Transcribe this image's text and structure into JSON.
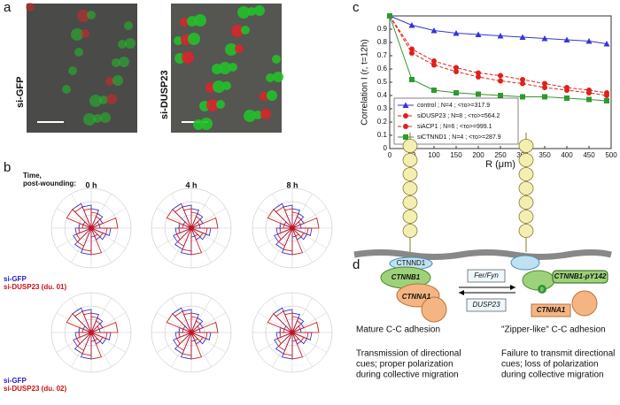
{
  "panel_labels": [
    "a",
    "b",
    "c",
    "d"
  ],
  "panel_a": {
    "images": [
      {
        "label": "si-GFP"
      },
      {
        "label": "si-DUSP23"
      }
    ]
  },
  "panel_b": {
    "time_label": [
      "Time,",
      "post-wounding:"
    ],
    "times": [
      "0 h",
      "4 h",
      "8 h"
    ],
    "rows": [
      {
        "control": "si-GFP",
        "treatment": "si-DUSP23 (du. 01)"
      },
      {
        "control": "si-GFP",
        "treatment": "si-DUSP23 (du. 02)"
      }
    ]
  },
  "chart_data": {
    "type": "line",
    "x_label": "R (μm)",
    "y_label": "Correlation I (r, t=12h)",
    "x": [
      0,
      50,
      100,
      150,
      200,
      250,
      300,
      350,
      400,
      450,
      490
    ],
    "xlim": [
      0,
      500
    ],
    "xticks": [
      0,
      50,
      100,
      150,
      200,
      250,
      300,
      350,
      400,
      450,
      500
    ],
    "ylim": [
      0,
      1
    ],
    "yticks": [
      0,
      0.1,
      0.2,
      0.3,
      0.4,
      0.5,
      0.6,
      0.7,
      0.8,
      0.9
    ],
    "legend": "lower left",
    "series": [
      {
        "name": "control ; N=4 ; <τo>=317.9",
        "color": "#3434d8",
        "marker": "triangle",
        "dashed": false,
        "values": [
          1,
          0.93,
          0.89,
          0.87,
          0.86,
          0.85,
          0.84,
          0.83,
          0.82,
          0.81,
          0.79
        ]
      },
      {
        "name": "siDUSP23 ; N=8 ; <τo>=564.2",
        "color": "#e0201b",
        "marker": "circle",
        "dashed": true,
        "values": [
          1,
          0.75,
          0.66,
          0.61,
          0.57,
          0.55,
          0.52,
          0.49,
          0.46,
          0.44,
          0.42
        ]
      },
      {
        "name": "siACP1 ; N=6 ; <τo>=999.1",
        "color": "#e0201b",
        "marker": "circle",
        "dashed": true,
        "values": [
          1,
          0.72,
          0.63,
          0.58,
          0.54,
          0.51,
          0.49,
          0.46,
          0.44,
          0.42,
          0.4
        ]
      },
      {
        "name": "siCTNND1 ; N=4 ; <τo>=287.9",
        "color": "#2e9a2e",
        "marker": "square",
        "dashed": false,
        "values": [
          1,
          0.52,
          0.44,
          0.42,
          0.41,
          0.4,
          0.39,
          0.39,
          0.38,
          0.37,
          0.36
        ]
      }
    ]
  },
  "panel_d": {
    "ctnnd1": "CTNND1",
    "ctnnb1": "CTNNB1",
    "ctnna1_left": "CTNNA1",
    "kinase": "Fer/Fyn",
    "phosphatase": "DUSP23",
    "ctnnb1_p": "CTNNB1-pY142",
    "p": "p",
    "ctnna1_right": "CTNNA1",
    "left_title": "Mature C-C adhesion",
    "right_title": "\"Zipper-like\" C-C adhesion",
    "left_text": [
      "Transmission of directional",
      "cues; proper polarization",
      "during collective migration"
    ],
    "right_text": [
      "Failure to transmit directional",
      "cues; loss of polarization",
      "during collective migration"
    ]
  }
}
